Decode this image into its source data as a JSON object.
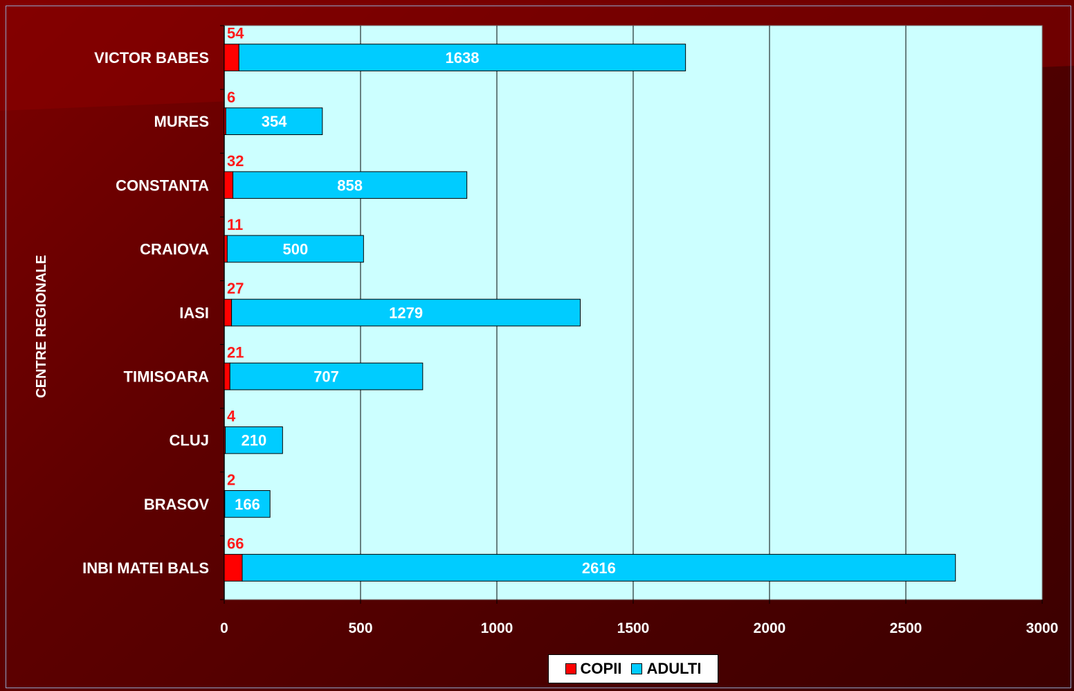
{
  "chart_data": {
    "type": "bar",
    "orientation": "horizontal",
    "stacked": true,
    "ylabel": "CENTRE REGIONALE",
    "xlim": [
      0,
      3000
    ],
    "xticks": [
      0,
      500,
      1000,
      1500,
      2000,
      2500,
      3000
    ],
    "grid": "vertical",
    "legend_position": "bottom",
    "categories": [
      "VICTOR BABES",
      "MURES",
      "CONSTANTA",
      "CRAIOVA",
      "IASI",
      "TIMISOARA",
      "CLUJ",
      "BRASOV",
      "INBI MATEI BALS"
    ],
    "series": [
      {
        "name": "COPII",
        "color": "#ff0000",
        "values": [
          54,
          6,
          32,
          11,
          27,
          21,
          4,
          2,
          66
        ]
      },
      {
        "name": "ADULTI",
        "color": "#00ccff",
        "values": [
          1638,
          354,
          858,
          500,
          1279,
          707,
          210,
          166,
          2616
        ]
      }
    ],
    "plot_background": "#ccffff"
  }
}
